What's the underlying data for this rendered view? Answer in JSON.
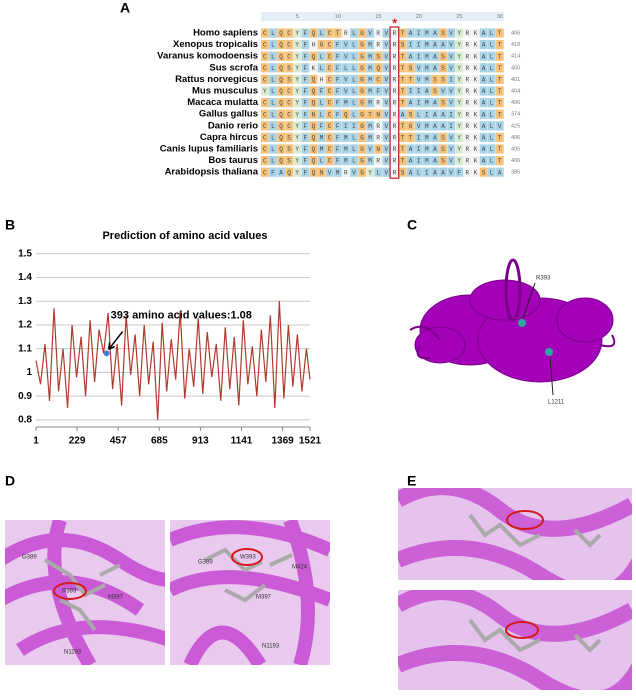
{
  "panel_labels": [
    "A",
    "B",
    "C",
    "D",
    "E"
  ],
  "alignment": {
    "ruler": [
      5,
      10,
      15,
      20,
      25,
      30
    ],
    "marker": "*",
    "highlight_column": 17,
    "species": [
      "Homo sapiens",
      "Xenopus tropicalis",
      "Varanus komodoensis",
      "Sus scrofa",
      "Rattus norvegicus",
      "Mus musculus",
      "Macaca mulatta",
      "Gallus gallus",
      "Danio rerio",
      "Capra hircus",
      "Canis lupus familiaris",
      "Bos taurus",
      "Arabidopsis thaliana"
    ],
    "sequences": [
      "CLQCYFQLCTRLGVRVRTAIMASVYRKALT",
      "CLQCYFHGCFVLGMRVRSIIMAAVYRKALT",
      "CLQCYFQLCFVLGMSVRTAIMASVYRKALT",
      "CLQSYFKLCFLLGMQVRTSVMASVYRKALT",
      "CLQSYFQHCFVLGMCVRTTVMSSIYRKALT",
      "YLQCYFQFCFVLGMFVRTIIASVVYRKALT",
      "CLQCYFQLCFMLGMRVRTAIMASVYRKALT",
      "CLQCYFNLCFQLGTNVRASLIAAIYRKALT",
      "CLQCYFQFCFIIGMRVRTGVMAAIYRKALV",
      "CLQSYFQMCFMLGMRVRTTIMASVYRKALT",
      "CLQSYFQMCFMLGVNVRTAIMASVYRKALT",
      "CLQSYFQLCFMLGMRVRTAIMASVYRKALT",
      "CFAQYFQNVMRVGYLVRSALIAAVFRKSLA"
    ],
    "end_numbers": [
      406,
      418,
      414,
      400,
      401,
      404,
      406,
      374,
      425,
      406,
      406,
      406,
      385
    ]
  },
  "chart_data": {
    "type": "line",
    "title": "Prediction of amino acid values",
    "x": [
      1,
      26,
      51,
      76,
      101,
      126,
      151,
      176,
      201,
      226,
      251,
      276,
      301,
      326,
      351,
      376,
      401,
      426,
      451,
      476,
      501,
      526,
      551,
      576,
      601,
      626,
      651,
      676,
      701,
      726,
      751,
      776,
      801,
      826,
      851,
      876,
      901,
      926,
      951,
      976,
      1001,
      1026,
      1051,
      1076,
      1101,
      1126,
      1151,
      1176,
      1201,
      1226,
      1251,
      1276,
      1301,
      1326,
      1351,
      1376,
      1401,
      1426,
      1451,
      1476,
      1501,
      1521
    ],
    "values": [
      1.05,
      0.95,
      1.12,
      0.88,
      1.27,
      0.92,
      1.1,
      0.85,
      1.2,
      0.98,
      1.15,
      0.9,
      1.22,
      0.96,
      1.18,
      1.08,
      1.25,
      0.93,
      1.12,
      0.86,
      1.24,
      0.99,
      1.16,
      0.9,
      1.2,
      0.95,
      1.13,
      0.8,
      1.21,
      0.92,
      1.14,
      0.97,
      1.26,
      0.89,
      1.1,
      0.94,
      1.23,
      0.91,
      1.17,
      0.98,
      1.12,
      0.88,
      1.19,
      0.93,
      1.15,
      0.86,
      1.22,
      0.95,
      1.11,
      0.9,
      1.18,
      0.96,
      1.24,
      0.85,
      1.3,
      0.89,
      1.2,
      0.94,
      1.16,
      0.92,
      1.1,
      0.97
    ],
    "color": "#b03a2e",
    "highlight": {
      "x": 393,
      "value": 1.08,
      "color": "#4a7bd0"
    },
    "annotation": "393 amino acid values:1.08",
    "xlim": [
      1,
      1521
    ],
    "ylim": [
      0.77,
      1.52
    ],
    "xticks": [
      1,
      229,
      457,
      685,
      913,
      1141,
      1369,
      1521
    ],
    "yticks": [
      0.8,
      0.9,
      1,
      1.1,
      1.2,
      1.3,
      1.4,
      1.5
    ],
    "grid": true
  },
  "structure": {
    "labels": [
      "R393",
      "L1211"
    ]
  },
  "detail_d": {
    "left_labels": [
      "G389",
      "R393",
      "M397",
      "N1193"
    ],
    "right_labels": [
      "G389",
      "W393",
      "M424",
      "M397",
      "N1193"
    ]
  }
}
